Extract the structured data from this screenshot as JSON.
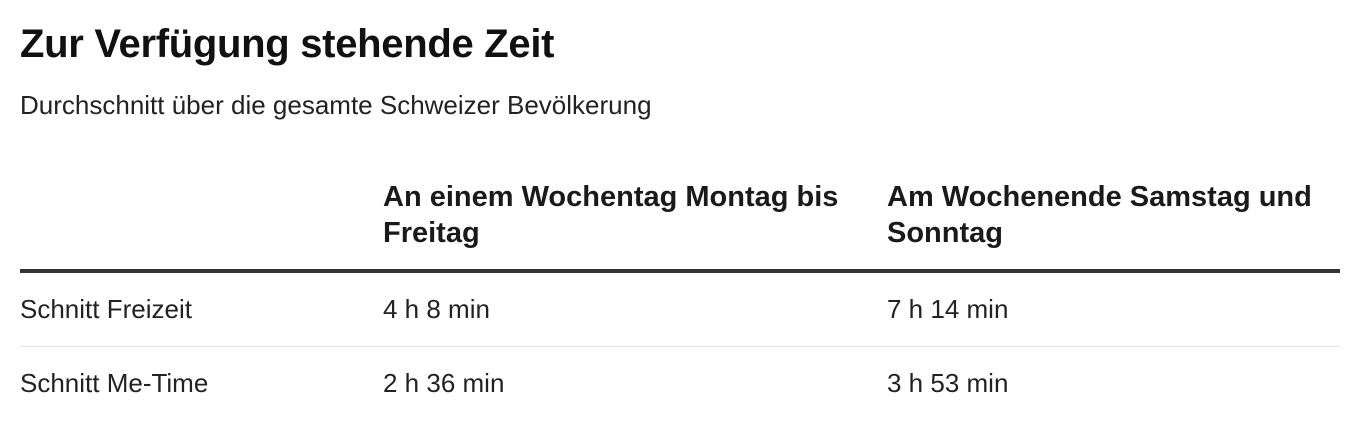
{
  "chart_data": {
    "type": "table",
    "title": "Zur Verfügung stehende Zeit",
    "subtitle": "Durchschnitt über die gesamte Schweizer Bevölkerung",
    "columns": [
      "",
      "An einem Wochentag Montag bis Freitag",
      "Am Wochenende Samstag und Sonntag"
    ],
    "rows": [
      {
        "label": "Schnitt Freizeit",
        "values": [
          "4 h 8 min",
          "7 h 14 min"
        ]
      },
      {
        "label": "Schnitt Me-Time",
        "values": [
          "2 h 36 min",
          "3 h 53 min"
        ]
      }
    ]
  }
}
